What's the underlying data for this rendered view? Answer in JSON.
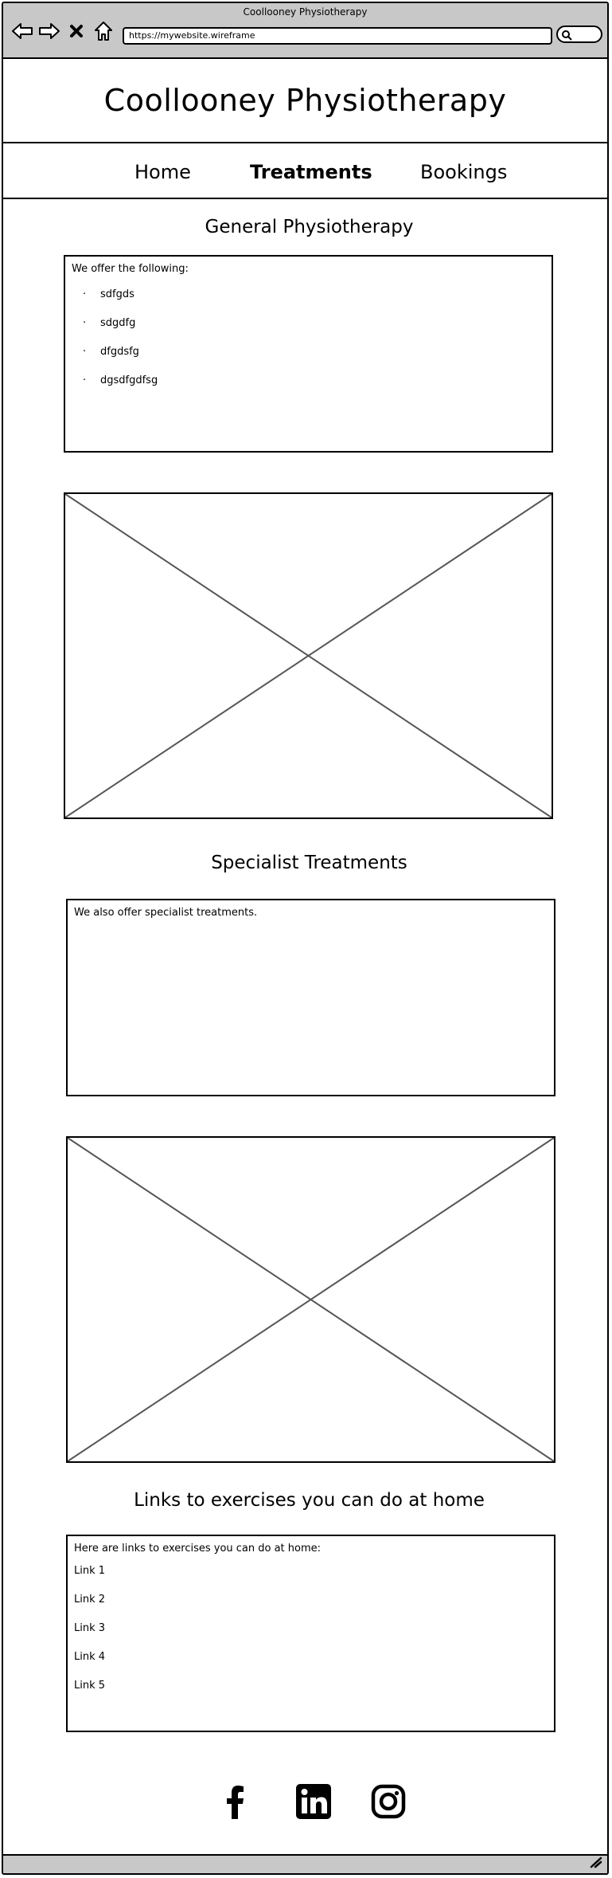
{
  "browser": {
    "window_title": "Coollooney Physiotherapy",
    "url": "https://mywebsite.wireframe"
  },
  "site": {
    "title": "Coollooney Physiotherapy"
  },
  "nav": {
    "items": [
      {
        "label": "Home",
        "active": false
      },
      {
        "label": "Treatments",
        "active": true
      },
      {
        "label": "Bookings",
        "active": false
      }
    ]
  },
  "general": {
    "heading": "General Physiotherapy",
    "intro": "We offer the following:",
    "items": [
      "sdfgds",
      "sdgdfg",
      "dfgdsfg",
      "dgsdfgdfsg"
    ]
  },
  "specialist": {
    "heading": "Specialist Treatments",
    "intro": "We also offer specialist treatments."
  },
  "exercises": {
    "heading": "Links to exercises you can do at home",
    "intro": "Here are links to exercises you can do at home:",
    "links": [
      "Link 1",
      "Link 2",
      "Link 3",
      "Link 4",
      "Link 5"
    ]
  },
  "footer": {
    "social_icons": [
      "facebook-icon",
      "linkedin-icon",
      "instagram-icon"
    ]
  }
}
